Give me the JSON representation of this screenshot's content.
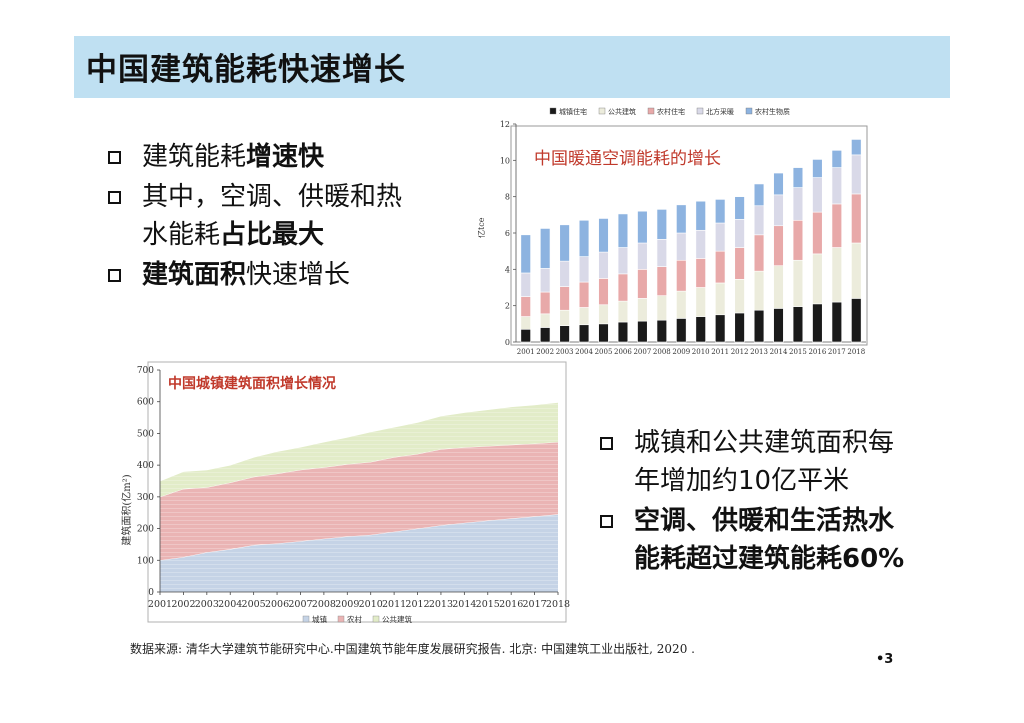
{
  "slide": {
    "title": "中国建筑能耗快速增长",
    "bullets_top": [
      {
        "lines": [
          [
            {
              "t": "建筑能耗",
              "b": false
            },
            {
              "t": "增速快",
              "b": true
            }
          ]
        ]
      },
      {
        "lines": [
          [
            {
              "t": "其中，空调、供暖和热",
              "b": false
            }
          ],
          [
            {
              "t": "水能耗",
              "b": false
            },
            {
              "t": "占比最大",
              "b": true
            }
          ]
        ]
      },
      {
        "lines": [
          [
            {
              "t": "建筑面积",
              "b": true
            },
            {
              "t": "快速增长",
              "b": false
            }
          ]
        ]
      }
    ],
    "bullets_bottom": [
      {
        "lines": [
          [
            {
              "t": "城镇和公共建筑面积每",
              "b": false
            }
          ],
          [
            {
              "t": "年增加约10亿平米",
              "b": false
            }
          ]
        ]
      },
      {
        "lines": [
          [
            {
              "t": "空调、供暖和生活热水",
              "b": true
            }
          ],
          [
            {
              "t": "能耗超过建筑能耗60%",
              "b": true
            }
          ]
        ]
      }
    ],
    "source": "数据来源: 清华大学建筑节能研究中心.中国建筑节能年度发展研究报告. 北京: 中国建筑工业出版社, 2020 .",
    "page_number": "•3"
  },
  "chart_data": [
    {
      "type": "bar",
      "stacked": true,
      "title": "中国暖通空调能耗的增长",
      "ylabel": "亿tce",
      "ylim": [
        0,
        12
      ],
      "yticks": [
        0,
        2,
        4,
        6,
        8,
        10,
        12
      ],
      "legend_position": "top",
      "categories": [
        "2001",
        "2002",
        "2003",
        "2004",
        "2005",
        "2006",
        "2007",
        "2008",
        "2009",
        "2010",
        "2011",
        "2012",
        "2013",
        "2014",
        "2015",
        "2016",
        "2017",
        "2018"
      ],
      "series": [
        {
          "name": "城镇住宅",
          "color": "#1a1a1a",
          "values": [
            0.7,
            0.8,
            0.9,
            0.95,
            1.0,
            1.1,
            1.15,
            1.2,
            1.3,
            1.4,
            1.5,
            1.6,
            1.75,
            1.85,
            1.95,
            2.1,
            2.2,
            2.4
          ]
        },
        {
          "name": "公共建筑",
          "color": "#ececdc",
          "values": [
            0.7,
            0.75,
            0.85,
            0.95,
            1.05,
            1.15,
            1.25,
            1.35,
            1.5,
            1.6,
            1.75,
            1.85,
            2.15,
            2.35,
            2.55,
            2.75,
            3.0,
            3.05
          ]
        },
        {
          "name": "农村住宅",
          "color": "#e8a9a9",
          "values": [
            1.1,
            1.2,
            1.3,
            1.4,
            1.45,
            1.5,
            1.6,
            1.6,
            1.7,
            1.6,
            1.75,
            1.75,
            2.0,
            2.2,
            2.2,
            2.3,
            2.4,
            2.7
          ]
        },
        {
          "name": "北方采暖",
          "color": "#d9d9e8",
          "values": [
            1.3,
            1.3,
            1.4,
            1.4,
            1.45,
            1.45,
            1.45,
            1.5,
            1.5,
            1.55,
            1.55,
            1.55,
            1.6,
            1.7,
            1.8,
            1.9,
            2.0,
            2.15
          ]
        },
        {
          "name": "农村生物质",
          "color": "#8db3e0",
          "values": [
            2.1,
            2.2,
            2.0,
            2.0,
            1.85,
            1.85,
            1.75,
            1.65,
            1.55,
            1.6,
            1.3,
            1.25,
            1.2,
            1.2,
            1.1,
            1.0,
            0.95,
            0.85
          ]
        }
      ]
    },
    {
      "type": "area",
      "stacked": true,
      "title": "中国城镇建筑面积增长情况",
      "ylabel": "建筑面积(亿m²)",
      "ylim": [
        0,
        700
      ],
      "yticks": [
        0,
        100,
        200,
        300,
        400,
        500,
        600,
        700
      ],
      "legend_position": "bottom",
      "x": [
        "2001",
        "2002",
        "2003",
        "2004",
        "2005",
        "2006",
        "2007",
        "2008",
        "2009",
        "2010",
        "2011",
        "2012",
        "2013",
        "2014",
        "2015",
        "2016",
        "2017",
        "2018"
      ],
      "series": [
        {
          "name": "城镇",
          "color": "#c5d3e6",
          "values": [
            100,
            110,
            125,
            135,
            148,
            153,
            160,
            168,
            175,
            180,
            190,
            200,
            210,
            218,
            225,
            232,
            238,
            245
          ]
        },
        {
          "name": "农村",
          "color": "#eab4b4",
          "values": [
            200,
            215,
            205,
            210,
            215,
            220,
            225,
            225,
            228,
            230,
            235,
            235,
            240,
            238,
            235,
            232,
            230,
            228
          ]
        },
        {
          "name": "公共建筑",
          "color": "#e2ecc8",
          "values": [
            50,
            55,
            55,
            55,
            62,
            70,
            72,
            80,
            85,
            95,
            95,
            100,
            105,
            110,
            115,
            120,
            122,
            125
          ]
        }
      ]
    }
  ]
}
